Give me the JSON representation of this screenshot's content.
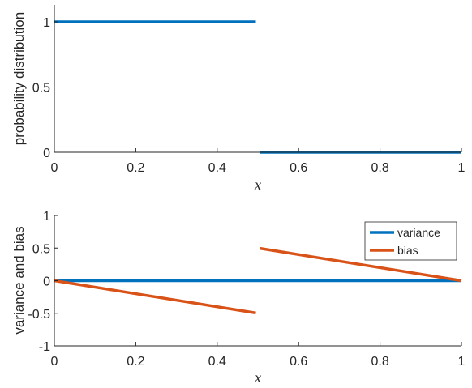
{
  "chart_data": [
    {
      "type": "line",
      "xlabel": "x",
      "ylabel": "probability distribution",
      "xlim": [
        0,
        1
      ],
      "ylim": [
        0,
        1
      ],
      "xticks": [
        0,
        0.2,
        0.4,
        0.6,
        0.8,
        1
      ],
      "xtick_labels": [
        "0",
        "0.2",
        "0.4",
        "0.6",
        "0.8",
        "1"
      ],
      "yticks": [
        0,
        0.5,
        1
      ],
      "ytick_labels": [
        "0",
        "0.5",
        "1"
      ],
      "grid": false,
      "series": [
        {
          "color": "#0072BD",
          "segments": [
            {
              "x": [
                0,
                0.495
              ],
              "y": [
                1,
                1
              ]
            },
            {
              "x": [
                0.505,
                1
              ],
              "y": [
                0,
                0
              ]
            }
          ]
        }
      ]
    },
    {
      "type": "line",
      "xlabel": "x",
      "ylabel": "variance and bias",
      "xlim": [
        0,
        1
      ],
      "ylim": [
        -1,
        1
      ],
      "xticks": [
        0,
        0.2,
        0.4,
        0.6,
        0.8,
        1
      ],
      "xtick_labels": [
        "0",
        "0.2",
        "0.4",
        "0.6",
        "0.8",
        "1"
      ],
      "yticks": [
        -1,
        -0.5,
        0,
        0.5,
        1
      ],
      "ytick_labels": [
        "-1",
        "-0.5",
        "0",
        "0.5",
        "1"
      ],
      "grid": false,
      "legend_position": "top-right",
      "series": [
        {
          "name": "variance",
          "color": "#0072BD",
          "segments": [
            {
              "x": [
                0,
                1
              ],
              "y": [
                0,
                0
              ]
            }
          ]
        },
        {
          "name": "bias",
          "color": "#D95319",
          "segments": [
            {
              "x": [
                0,
                0.495
              ],
              "y": [
                0,
                -0.495
              ]
            },
            {
              "x": [
                0.505,
                1
              ],
              "y": [
                0.495,
                0
              ]
            }
          ]
        }
      ]
    }
  ]
}
